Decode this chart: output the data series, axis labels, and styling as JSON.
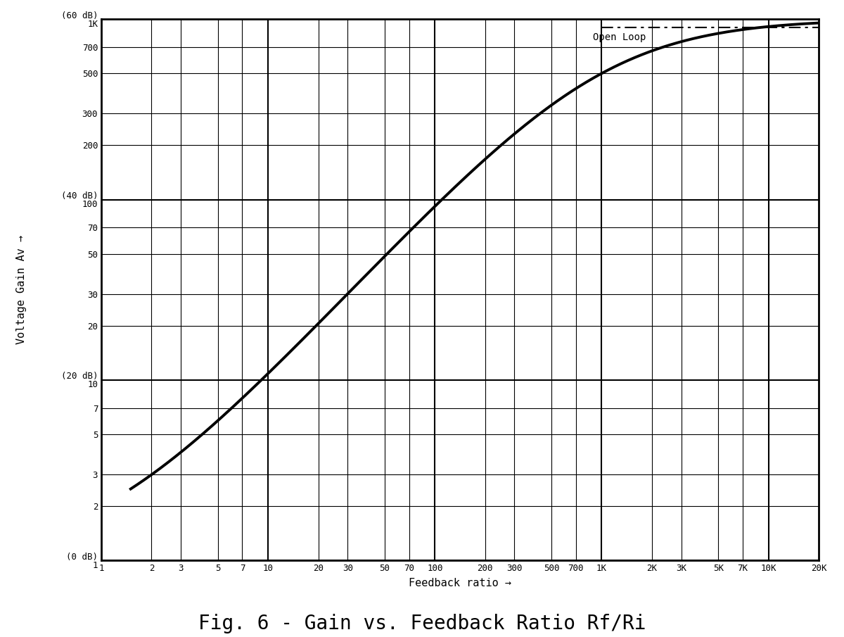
{
  "title": "Fig. 6 - Gain vs. Feedback Ratio Rf/Ri",
  "xlabel": "Feedback ratio →",
  "ylabel": "Voltage Gain Av →",
  "open_loop_gain": 1000,
  "open_loop_label": "Open Loop",
  "x_ticks": [
    1,
    2,
    3,
    5,
    7,
    10,
    20,
    30,
    50,
    70,
    100,
    200,
    300,
    500,
    700,
    1000,
    2000,
    3000,
    5000,
    7000,
    10000,
    20000
  ],
  "x_tick_labels": [
    "1",
    "2",
    "3",
    "5",
    "7",
    "10",
    "20",
    "30",
    "50",
    "70",
    "100",
    "200",
    "300",
    "500",
    "700",
    "1K",
    "2K",
    "3K",
    "5K",
    "7K",
    "10K",
    "20K"
  ],
  "y_ticks": [
    1,
    2,
    3,
    5,
    7,
    10,
    20,
    30,
    50,
    70,
    100,
    200,
    300,
    500,
    700,
    1000
  ],
  "y_special_labels": {
    "1": "(0 dB)\n1",
    "10": "(20 dB)\n10",
    "100": "(40 dB)\n100",
    "1000": "(60 dB)\n1K"
  },
  "xlim": [
    1,
    20000
  ],
  "ylim": [
    1,
    1000
  ],
  "curve_color": "#000000",
  "open_loop_color": "#000000",
  "grid_major_color": "#000000",
  "grid_minor_color": "#888888",
  "background_color": "#ffffff",
  "line_width": 2.8,
  "open_loop_lw": 1.5,
  "curve_x_start": 1.5
}
